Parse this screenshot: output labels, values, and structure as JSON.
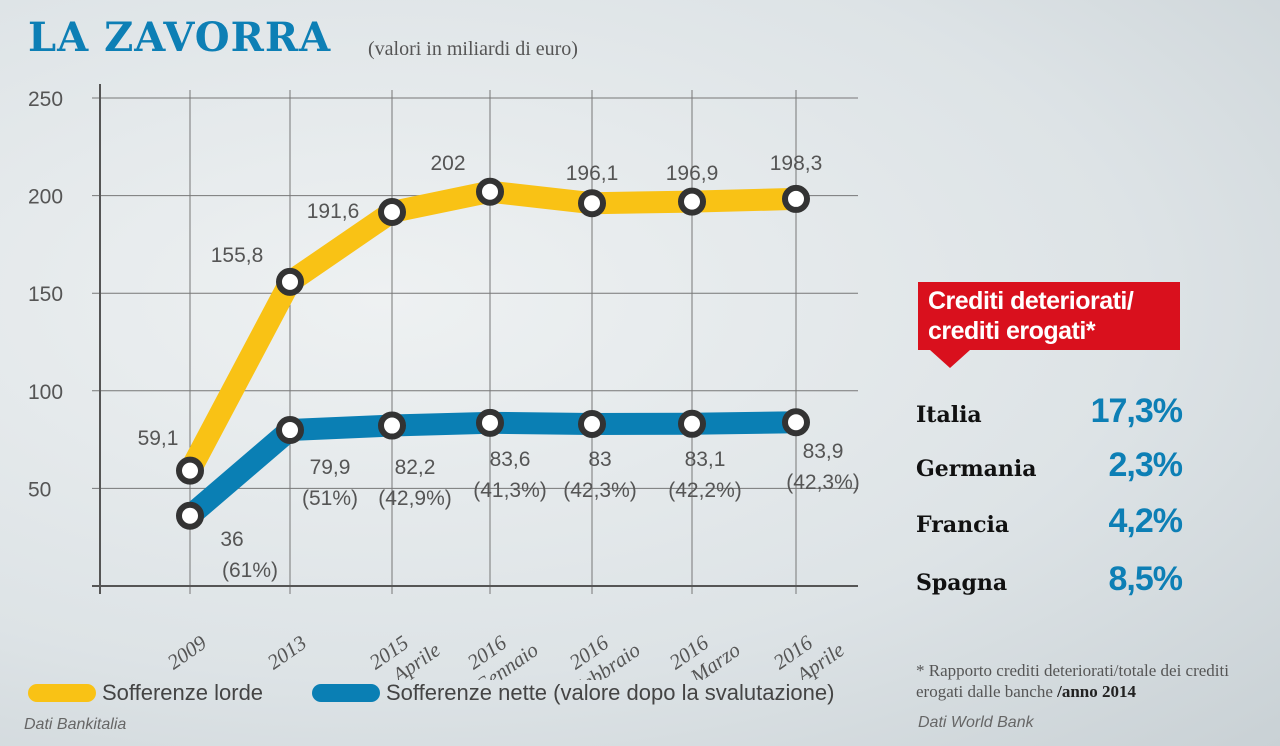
{
  "header": {
    "title": "LA ZAVORRA",
    "subtitle": "(valori in miliardi di euro)"
  },
  "chart_data": {
    "type": "line",
    "ylim": [
      0,
      250
    ],
    "yticks": [
      50,
      100,
      150,
      200,
      250
    ],
    "grid": true,
    "categories": [
      [
        "2009",
        ""
      ],
      [
        "2013",
        ""
      ],
      [
        "2015",
        "Aprile"
      ],
      [
        "2016",
        "Gennaio"
      ],
      [
        "2016",
        "Febbraio"
      ],
      [
        "2016",
        "Marzo"
      ],
      [
        "2016",
        "Aprile"
      ]
    ],
    "series": [
      {
        "name": "Sofferenze lorde",
        "color": "#f9c215",
        "values": [
          59.1,
          155.8,
          191.6,
          202,
          196.1,
          196.9,
          198.3
        ],
        "labels": [
          "59,1",
          "155,8",
          "191,6",
          "202",
          "196,1",
          "196,9",
          "198,3"
        ]
      },
      {
        "name": "Sofferenze nette (valore dopo la svalutazione)",
        "color": "#0a7fb4",
        "values": [
          36,
          79.9,
          82.2,
          83.6,
          83,
          83.1,
          83.9
        ],
        "labels": [
          "36",
          "79,9",
          "82,2",
          "83,6",
          "83",
          "83,1",
          "83,9"
        ],
        "pct": [
          "(61%)",
          "(51%)",
          "(42,9%)",
          "(41,3%)",
          "(42,3%)",
          "(42,2%)",
          "(42,3%)"
        ]
      }
    ],
    "legend_placement": "bottom-left"
  },
  "source_left": "Dati Bankitalia",
  "panel": {
    "title_line1": "Crediti deteriorati/",
    "title_line2": "crediti erogati*",
    "rows": [
      {
        "country": "Italia",
        "value": "17,3%"
      },
      {
        "country": "Germania",
        "value": "2,3%"
      },
      {
        "country": "Francia",
        "value": "4,2%"
      },
      {
        "country": "Spagna",
        "value": "8,5%"
      }
    ],
    "note": "* Rapporto crediti deteriorati/totale dei crediti erogati dalle banche",
    "note_bold": "/anno 2014",
    "source": "Dati World Bank"
  }
}
